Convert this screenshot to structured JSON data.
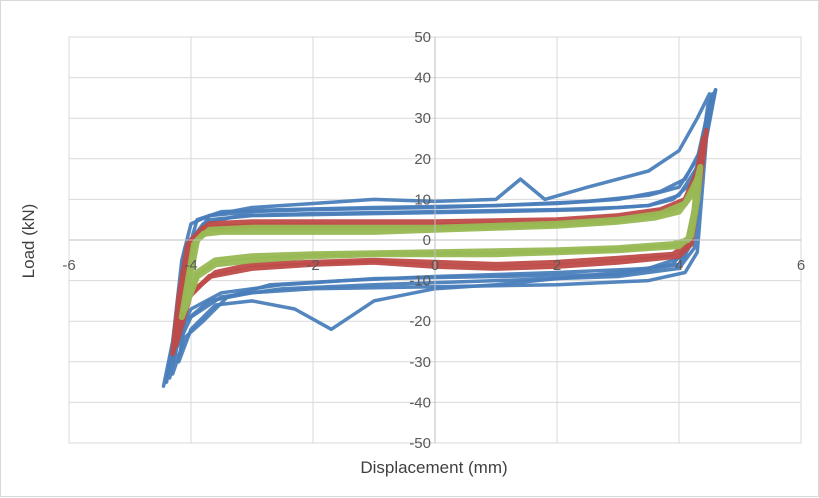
{
  "chart_data": {
    "type": "line",
    "title": "",
    "xlabel": "Displacement (mm)",
    "ylabel": "Load (kN)",
    "xlim": [
      -6,
      6
    ],
    "ylim": [
      -50,
      50
    ],
    "xticks": [
      -6,
      -4,
      -2,
      0,
      2,
      4,
      6
    ],
    "yticks": [
      -50,
      -40,
      -30,
      -20,
      -10,
      0,
      10,
      20,
      30,
      40,
      50
    ],
    "grid": true,
    "legend": "none",
    "series": [
      {
        "color": "#4a7ebb",
        "loops": [
          {
            "upper": [
              [
                -4.45,
                -36
              ],
              [
                -4.3,
                -25
              ],
              [
                -4.15,
                -5
              ],
              [
                -4.0,
                4
              ],
              [
                -3.7,
                6
              ],
              [
                -3,
                7
              ],
              [
                -2,
                7.5
              ],
              [
                0,
                8
              ],
              [
                2,
                9
              ],
              [
                3,
                10
              ],
              [
                3.7,
                12
              ],
              [
                4.1,
                15
              ],
              [
                4.35,
                22
              ],
              [
                4.5,
                33
              ],
              [
                4.6,
                37
              ]
            ],
            "lower": [
              [
                4.6,
                37
              ],
              [
                4.45,
                25
              ],
              [
                4.3,
                -3
              ],
              [
                4.1,
                -8
              ],
              [
                3.5,
                -10
              ],
              [
                2,
                -11
              ],
              [
                0,
                -11.5
              ],
              [
                -2,
                -12
              ],
              [
                -3,
                -13
              ],
              [
                -3.7,
                -15
              ],
              [
                -4.1,
                -20
              ],
              [
                -4.3,
                -28
              ],
              [
                -4.45,
                -36
              ]
            ]
          },
          {
            "upper": [
              [
                -4.35,
                -34
              ],
              [
                -4.2,
                -22
              ],
              [
                -4.05,
                -3
              ],
              [
                -3.9,
                5
              ],
              [
                -3.5,
                7
              ],
              [
                -2.5,
                7.5
              ],
              [
                -1,
                8
              ],
              [
                1,
                8.5
              ],
              [
                2.5,
                9.5
              ],
              [
                3.5,
                11
              ],
              [
                4,
                13
              ],
              [
                4.3,
                20
              ],
              [
                4.45,
                30
              ],
              [
                4.55,
                36
              ]
            ],
            "lower": [
              [
                4.55,
                36
              ],
              [
                4.4,
                22
              ],
              [
                4.25,
                -2
              ],
              [
                4.0,
                -7
              ],
              [
                3,
                -9
              ],
              [
                1,
                -10
              ],
              [
                -1,
                -11
              ],
              [
                -2.5,
                -12
              ],
              [
                -3.5,
                -14
              ],
              [
                -4,
                -19
              ],
              [
                -4.25,
                -27
              ],
              [
                -4.35,
                -34
              ]
            ]
          },
          {
            "upper": [
              [
                -4.2,
                -30
              ],
              [
                -4.05,
                -15
              ],
              [
                -3.95,
                0
              ],
              [
                -3.7,
                6
              ],
              [
                -3,
                8
              ],
              [
                -2,
                9
              ],
              [
                -1,
                10
              ],
              [
                0,
                9.5
              ],
              [
                1,
                10
              ],
              [
                1.4,
                15
              ],
              [
                1.8,
                10
              ],
              [
                2.5,
                13
              ],
              [
                3.5,
                17
              ],
              [
                4.0,
                22
              ],
              [
                4.3,
                30
              ],
              [
                4.5,
                36
              ]
            ],
            "lower": [
              [
                4.5,
                36
              ],
              [
                4.35,
                20
              ],
              [
                4.2,
                0
              ],
              [
                3.9,
                -6
              ],
              [
                3,
                -8
              ],
              [
                2,
                -9.5
              ],
              [
                1,
                -11
              ],
              [
                0,
                -12
              ],
              [
                -1,
                -15
              ],
              [
                -1.7,
                -22
              ],
              [
                -2.3,
                -17
              ],
              [
                -3,
                -15
              ],
              [
                -3.6,
                -16
              ],
              [
                -4.0,
                -22
              ],
              [
                -4.2,
                -30
              ]
            ]
          },
          {
            "upper": [
              [
                -4.4,
                -35
              ],
              [
                -4.25,
                -20
              ],
              [
                -4.1,
                -2
              ],
              [
                -3.8,
                4
              ],
              [
                -3.2,
                6
              ],
              [
                -2,
                6.5
              ],
              [
                0,
                7
              ],
              [
                2,
                7.5
              ],
              [
                3,
                8
              ],
              [
                3.5,
                8.5
              ],
              [
                3.9,
                10
              ],
              [
                4.2,
                14
              ],
              [
                4.4,
                23
              ],
              [
                4.55,
                34
              ]
            ],
            "lower": [
              [
                4.55,
                34
              ],
              [
                4.35,
                18
              ],
              [
                4.2,
                -1
              ],
              [
                4.0,
                -6
              ],
              [
                3,
                -8.5
              ],
              [
                1,
                -9
              ],
              [
                -1,
                -9.5
              ],
              [
                -2.5,
                -11
              ],
              [
                -3.5,
                -13
              ],
              [
                -4.0,
                -17
              ],
              [
                -4.3,
                -26
              ],
              [
                -4.4,
                -35
              ]
            ]
          },
          {
            "upper": [
              [
                -4.3,
                -33
              ],
              [
                -4.15,
                -18
              ],
              [
                -4.0,
                -1
              ],
              [
                -3.7,
                5
              ],
              [
                -3,
                6
              ],
              [
                -1,
                6.5
              ],
              [
                1,
                7
              ],
              [
                2.5,
                7.5
              ],
              [
                3.5,
                8.5
              ],
              [
                4.0,
                11
              ],
              [
                4.3,
                18
              ],
              [
                4.5,
                30
              ],
              [
                4.6,
                37
              ]
            ],
            "lower": [
              [
                4.6,
                37
              ],
              [
                4.4,
                26
              ],
              [
                4.25,
                4
              ],
              [
                4.1,
                -4
              ],
              [
                3.5,
                -7
              ],
              [
                2,
                -8
              ],
              [
                0,
                -9
              ],
              [
                -1.5,
                -10
              ],
              [
                -2.7,
                -11
              ],
              [
                -3.4,
                -14
              ],
              [
                -3.8,
                -20
              ],
              [
                -4.1,
                -24
              ],
              [
                -4.3,
                -33
              ]
            ]
          }
        ]
      },
      {
        "color": "#be4b48",
        "loops": [
          {
            "upper": [
              [
                -4.3,
                -28
              ],
              [
                -4.2,
                -14
              ],
              [
                -4.05,
                -1
              ],
              [
                -3.8,
                3
              ],
              [
                -3,
                3.5
              ],
              [
                -2,
                3.5
              ],
              [
                0,
                3.5
              ],
              [
                2,
                4
              ],
              [
                3,
                5
              ],
              [
                3.7,
                6.5
              ],
              [
                4.1,
                9
              ],
              [
                4.3,
                16
              ],
              [
                4.4,
                23
              ],
              [
                4.45,
                27
              ]
            ],
            "lower": [
              [
                4.45,
                27
              ],
              [
                4.35,
                15
              ],
              [
                4.2,
                -1
              ],
              [
                4.0,
                -4
              ],
              [
                3,
                -5.5
              ],
              [
                2,
                -6.5
              ],
              [
                1,
                -7
              ],
              [
                0,
                -6.5
              ],
              [
                -1,
                -5.5
              ],
              [
                -2,
                -6
              ],
              [
                -3,
                -7
              ],
              [
                -3.7,
                -9
              ],
              [
                -4.1,
                -15
              ],
              [
                -4.3,
                -28
              ]
            ]
          },
          {
            "upper": [
              [
                -4.25,
                -26
              ],
              [
                -4.15,
                -12
              ],
              [
                -4.0,
                0
              ],
              [
                -3.7,
                4
              ],
              [
                -3,
                4.5
              ],
              [
                -2,
                4.5
              ],
              [
                0,
                4.5
              ],
              [
                2,
                5
              ],
              [
                3,
                6
              ],
              [
                3.7,
                7.5
              ],
              [
                4.1,
                10
              ],
              [
                4.3,
                17
              ],
              [
                4.4,
                25
              ]
            ],
            "lower": [
              [
                4.4,
                25
              ],
              [
                4.3,
                12
              ],
              [
                4.15,
                -1
              ],
              [
                3.9,
                -3.5
              ],
              [
                3,
                -4.5
              ],
              [
                2,
                -5.5
              ],
              [
                1,
                -6
              ],
              [
                0,
                -5.5
              ],
              [
                -1,
                -5
              ],
              [
                -2,
                -5.5
              ],
              [
                -3,
                -6
              ],
              [
                -3.6,
                -8
              ],
              [
                -4.0,
                -13
              ],
              [
                -4.25,
                -26
              ]
            ]
          }
        ]
      },
      {
        "color": "#98b954",
        "loops": [
          {
            "upper": [
              [
                -4.15,
                -19
              ],
              [
                -4.05,
                -10
              ],
              [
                -3.95,
                -1
              ],
              [
                -3.8,
                1.5
              ],
              [
                -3.5,
                2
              ],
              [
                -3,
                2
              ],
              [
                -2,
                2
              ],
              [
                -1,
                2
              ],
              [
                0,
                2.5
              ],
              [
                1,
                3
              ],
              [
                2,
                3.5
              ],
              [
                3,
                4.5
              ],
              [
                3.6,
                5.5
              ],
              [
                4,
                7
              ],
              [
                4.25,
                12
              ],
              [
                4.35,
                18
              ]
            ],
            "lower": [
              [
                4.35,
                18
              ],
              [
                4.3,
                10
              ],
              [
                4.2,
                1
              ],
              [
                4.0,
                -1.5
              ],
              [
                3.5,
                -2
              ],
              [
                3,
                -2.5
              ],
              [
                2,
                -3
              ],
              [
                1,
                -3.5
              ],
              [
                0,
                -3.5
              ],
              [
                -1,
                -3.5
              ],
              [
                -2,
                -4
              ],
              [
                -3,
                -5
              ],
              [
                -3.6,
                -6
              ],
              [
                -3.9,
                -9
              ],
              [
                -4.15,
                -19
              ]
            ]
          },
          {
            "upper": [
              [
                -4.1,
                -17
              ],
              [
                -4.0,
                -8
              ],
              [
                -3.9,
                0
              ],
              [
                -3.7,
                2.5
              ],
              [
                -3,
                3
              ],
              [
                -2,
                3
              ],
              [
                0,
                3
              ],
              [
                2,
                4
              ],
              [
                3,
                5
              ],
              [
                3.7,
                6.5
              ],
              [
                4.1,
                9
              ],
              [
                4.3,
                15
              ]
            ],
            "lower": [
              [
                4.3,
                15
              ],
              [
                4.25,
                7
              ],
              [
                4.15,
                0
              ],
              [
                3.9,
                -1
              ],
              [
                3,
                -2
              ],
              [
                2,
                -2.5
              ],
              [
                0,
                -3
              ],
              [
                -2,
                -3.5
              ],
              [
                -3,
                -4
              ],
              [
                -3.6,
                -5
              ],
              [
                -3.9,
                -8
              ],
              [
                -4.1,
                -17
              ]
            ]
          }
        ]
      }
    ]
  }
}
